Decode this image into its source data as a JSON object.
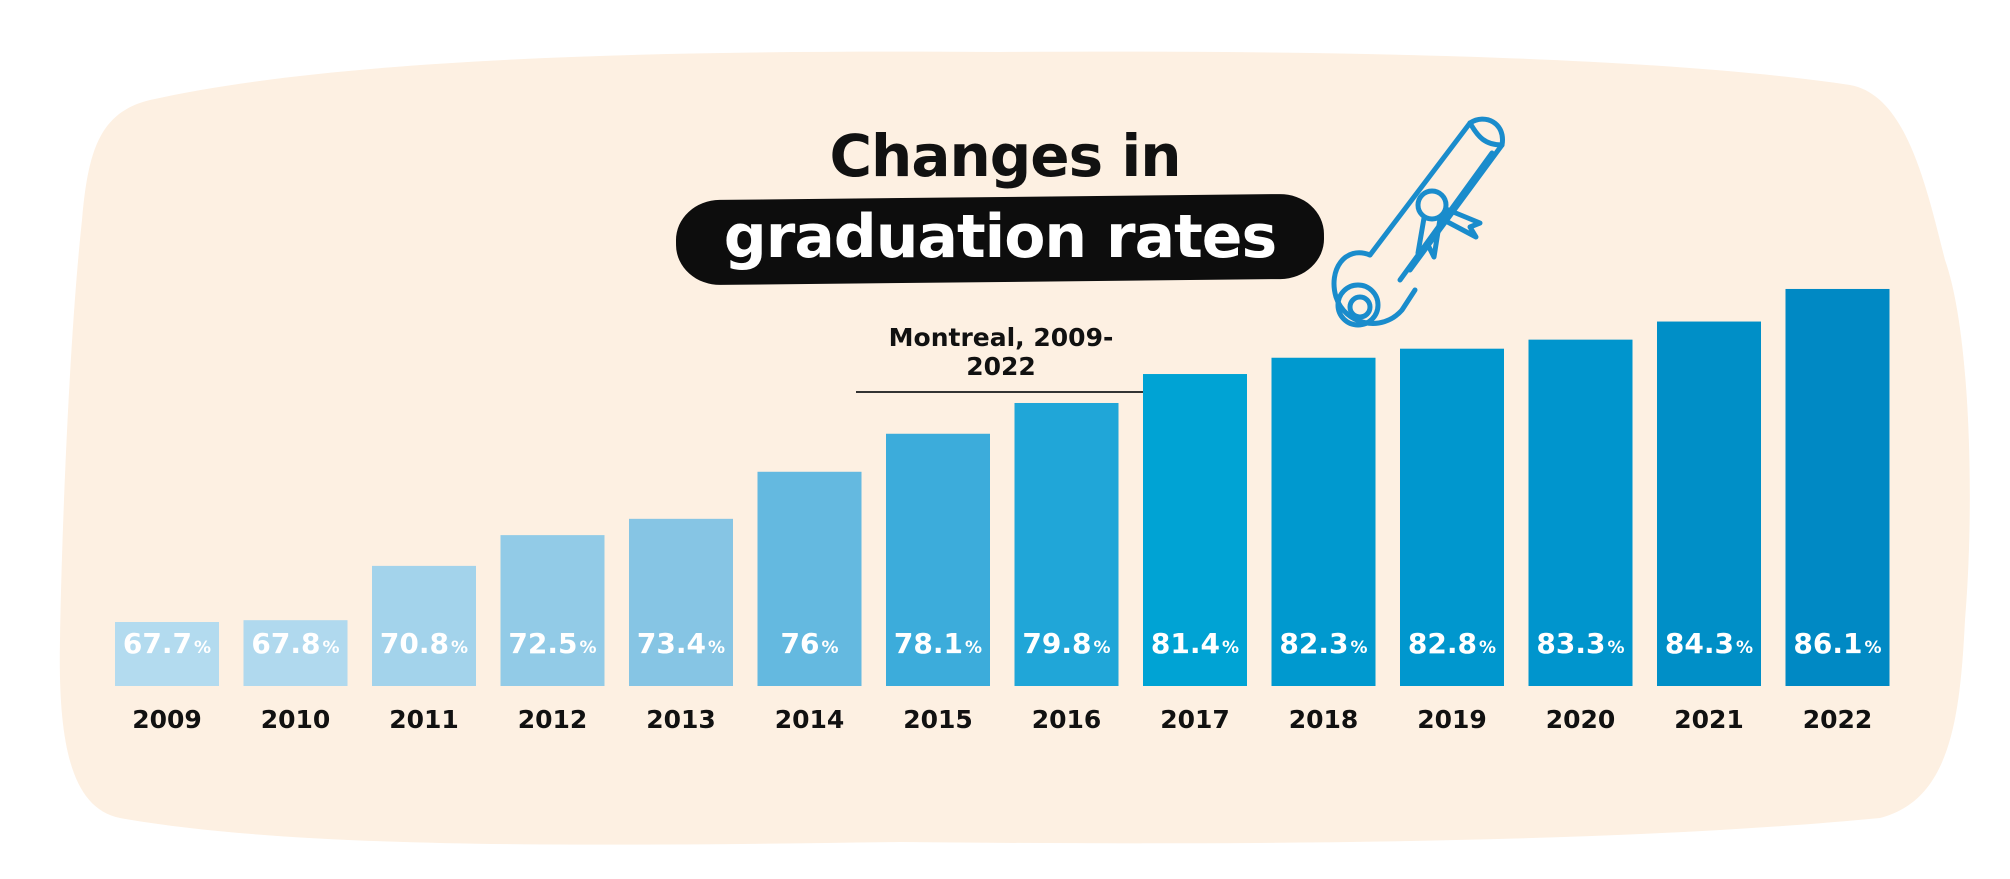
{
  "header": {
    "title_line1": "Changes in",
    "title_line2": "graduation rates",
    "subtitle": "Montreal, 2009-2022"
  },
  "icon": "diploma-scroll-icon",
  "colors": {
    "background_blob": "#fdf0e2",
    "title_pill": "#0d0d0d",
    "icon_stroke": "#1a8ccc",
    "bar_colors": [
      "#b3dbef",
      "#b0d9ee",
      "#a3d3eb",
      "#92cbe7",
      "#86c5e4",
      "#64b9e0",
      "#3cacdb",
      "#20a6d8",
      "#00a3d4",
      "#0099cf",
      "#0097ce",
      "#0095cd",
      "#008fc7",
      "#0089c4"
    ]
  },
  "chart_data": {
    "type": "bar",
    "title": "Changes in graduation rates",
    "subtitle": "Montreal, 2009-2022",
    "categories": [
      "2009",
      "2010",
      "2011",
      "2012",
      "2013",
      "2014",
      "2015",
      "2016",
      "2017",
      "2018",
      "2019",
      "2020",
      "2021",
      "2022"
    ],
    "values": [
      67.7,
      67.8,
      70.8,
      72.5,
      73.4,
      76,
      78.1,
      79.8,
      81.4,
      82.3,
      82.8,
      83.3,
      84.3,
      86.1
    ],
    "value_suffix": "%",
    "xlabel": "",
    "ylabel": "",
    "grid": false,
    "legend": "none"
  }
}
